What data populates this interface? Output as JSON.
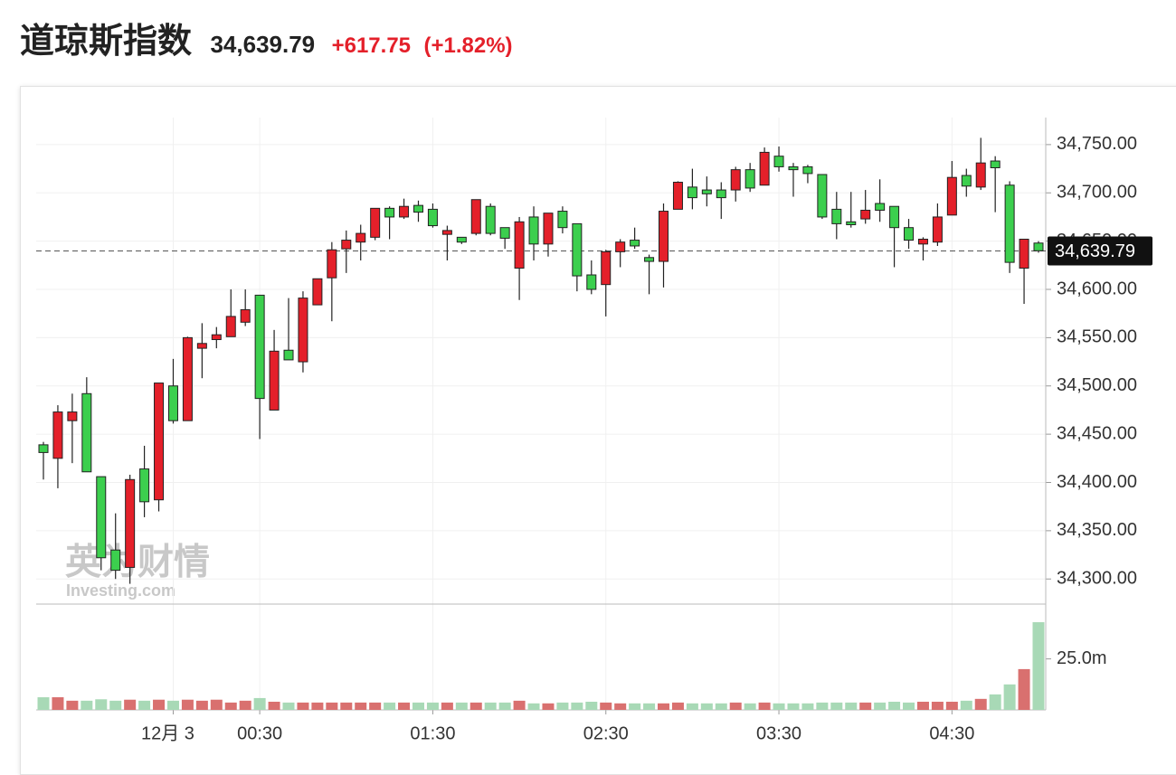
{
  "header": {
    "title": "道琼斯指数",
    "change": "+617.75",
    "change_percent": "(+1.82%)"
  },
  "watermark": {
    "brand": "英为财情",
    "site": "Investing.com"
  },
  "chart_data": {
    "type": "candlestick",
    "up_color": "#e4202a",
    "down_color": "#3ccf4e",
    "volume_up_color": "#d9706f",
    "volume_down_color": "#a8d9b6",
    "last_price": {
      "value": 34639.79,
      "label": "34,639.79"
    },
    "open": [
      34439,
      34425,
      34464,
      34492,
      34406,
      34330,
      34312,
      34414,
      34382,
      34500,
      34464,
      34539,
      34548,
      34551,
      34566,
      34594,
      34475,
      34537,
      34525,
      34584,
      34612,
      34642,
      34649,
      34654,
      34684,
      34675,
      34687,
      34683,
      34657,
      34654,
      34658,
      34686,
      34664,
      34622,
      34675,
      34647,
      34681,
      34668,
      34615,
      34605,
      34639,
      34651,
      34633,
      34629,
      34683,
      34706,
      34703,
      34703,
      34703,
      34724,
      34708,
      34738,
      34727,
      34727,
      34719,
      34683,
      34670,
      34673,
      34689,
      34686,
      34664,
      34647,
      34649,
      34677,
      34718,
      34706,
      34733,
      34708,
      34622,
      34648
    ],
    "high": [
      34442,
      34480,
      34492,
      34509,
      34406,
      34368,
      34408,
      34438,
      34503,
      34528,
      34551,
      34565,
      34561,
      34600,
      34600,
      34594,
      34558,
      34591,
      34598,
      34611,
      34649,
      34661,
      34667,
      34684,
      34686,
      34694,
      34692,
      34689,
      34666,
      34654,
      34693,
      34689,
      34664,
      34675,
      34686,
      34679,
      34686,
      34668,
      34630,
      34641,
      34652,
      34664,
      34636,
      34689,
      34712,
      34725,
      34717,
      34711,
      34727,
      34731,
      34747,
      34748,
      34731,
      34729,
      34719,
      34701,
      34701,
      34703,
      34714,
      34686,
      34673,
      34654,
      34689,
      34733,
      34725,
      34757,
      34738,
      34712,
      34652,
      34650
    ],
    "low": [
      34403,
      34394,
      34420,
      34411,
      34309,
      34300,
      34295,
      34364,
      34370,
      34461,
      34464,
      34508,
      34539,
      34551,
      34562,
      34445,
      34475,
      34527,
      34514,
      34584,
      34567,
      34617,
      34630,
      34651,
      34652,
      34673,
      34670,
      34664,
      34630,
      34647,
      34656,
      34656,
      34642,
      34589,
      34630,
      34634,
      34658,
      34598,
      34595,
      34572,
      34623,
      34642,
      34595,
      34602,
      34683,
      34683,
      34686,
      34673,
      34691,
      34701,
      34708,
      34722,
      34696,
      34710,
      34673,
      34652,
      34664,
      34668,
      34670,
      34623,
      34642,
      34630,
      34645,
      34677,
      34696,
      34703,
      34680,
      34617,
      34585,
      34638
    ],
    "close": [
      34431,
      34473,
      34473,
      34411,
      34322,
      34309,
      34403,
      34380,
      34503,
      34464,
      34550,
      34544,
      34553,
      34572,
      34579,
      34487,
      34536,
      34527,
      34591,
      34611,
      34641,
      34651,
      34658,
      34684,
      34675,
      34686,
      34680,
      34666,
      34661,
      34649,
      34693,
      34658,
      34653,
      34670,
      34647,
      34679,
      34664,
      34614,
      34600,
      34639,
      34649,
      34645,
      34629,
      34681,
      34711,
      34695,
      34699,
      34695,
      34724,
      34705,
      34742,
      34727,
      34724,
      34720,
      34675,
      34668,
      34667,
      34682,
      34682,
      34664,
      34651,
      34652,
      34675,
      34716,
      34707,
      34731,
      34726,
      34628,
      34652,
      34640
    ],
    "volume": [
      6.2,
      6.2,
      4.5,
      4.5,
      5.2,
      4.5,
      5.0,
      4.5,
      5.0,
      4.5,
      5.0,
      4.5,
      5.0,
      3.6,
      4.5,
      5.8,
      4.0,
      3.6,
      3.6,
      3.6,
      3.6,
      3.6,
      3.6,
      3.6,
      3.6,
      3.6,
      3.6,
      3.6,
      3.6,
      3.6,
      3.6,
      3.6,
      3.6,
      4.5,
      3.2,
      3.2,
      3.6,
      3.6,
      4.0,
      3.6,
      3.2,
      3.2,
      3.2,
      3.2,
      3.6,
      3.2,
      3.2,
      3.2,
      3.6,
      3.2,
      3.6,
      3.2,
      3.2,
      3.2,
      3.6,
      3.6,
      3.6,
      3.6,
      3.6,
      4.0,
      3.6,
      4.0,
      4.0,
      4.0,
      4.5,
      5.4,
      7.6,
      12.5,
      20.0,
      43.0
    ],
    "ylim": [
      34274,
      34778
    ],
    "yticks": [
      {
        "value": 34300,
        "label": "34,300.00"
      },
      {
        "value": 34350,
        "label": "34,350.00"
      },
      {
        "value": 34400,
        "label": "34,400.00"
      },
      {
        "value": 34450,
        "label": "34,450.00"
      },
      {
        "value": 34500,
        "label": "34,500.00"
      },
      {
        "value": 34550,
        "label": "34,550.00"
      },
      {
        "value": 34600,
        "label": "34,600.00"
      },
      {
        "value": 34650,
        "label": "34,650.00"
      },
      {
        "value": 34700,
        "label": "34,700.00"
      },
      {
        "value": 34750,
        "label": "34,750.00"
      }
    ],
    "y2lim": [
      0,
      51
    ],
    "y2ticks": [
      {
        "value": 25,
        "label": "25.0m"
      }
    ],
    "xticks": [
      {
        "value": 9,
        "label": "12月 3"
      },
      {
        "value": 15,
        "label": "00:30"
      },
      {
        "value": 27,
        "label": "01:30"
      },
      {
        "value": 39,
        "label": "02:30"
      },
      {
        "value": 51,
        "label": "03:30"
      },
      {
        "value": 63,
        "label": "04:30"
      }
    ],
    "grid": true
  }
}
